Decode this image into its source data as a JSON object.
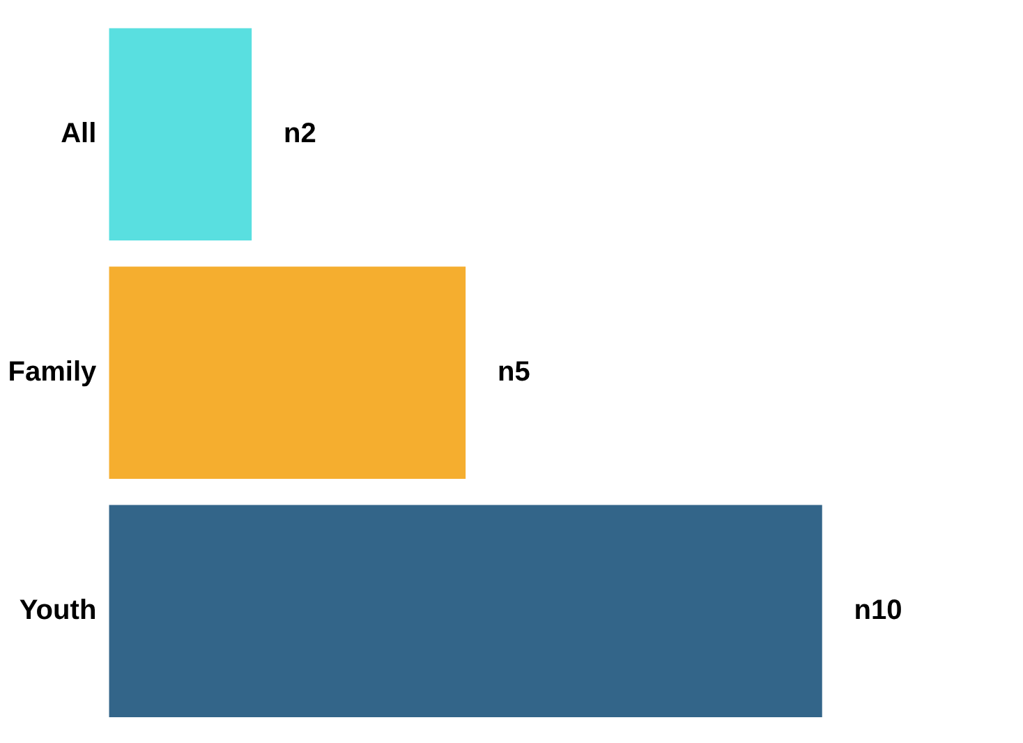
{
  "chart_data": {
    "type": "bar",
    "orientation": "horizontal",
    "categories": [
      "All",
      "Family",
      "Youth"
    ],
    "values": [
      2,
      5,
      10
    ],
    "value_labels": [
      "n2",
      "n5",
      "n10"
    ],
    "colors": [
      "#59dfe0",
      "#f5ae2f",
      "#336589"
    ],
    "grid": false,
    "tick_labels": "y"
  }
}
